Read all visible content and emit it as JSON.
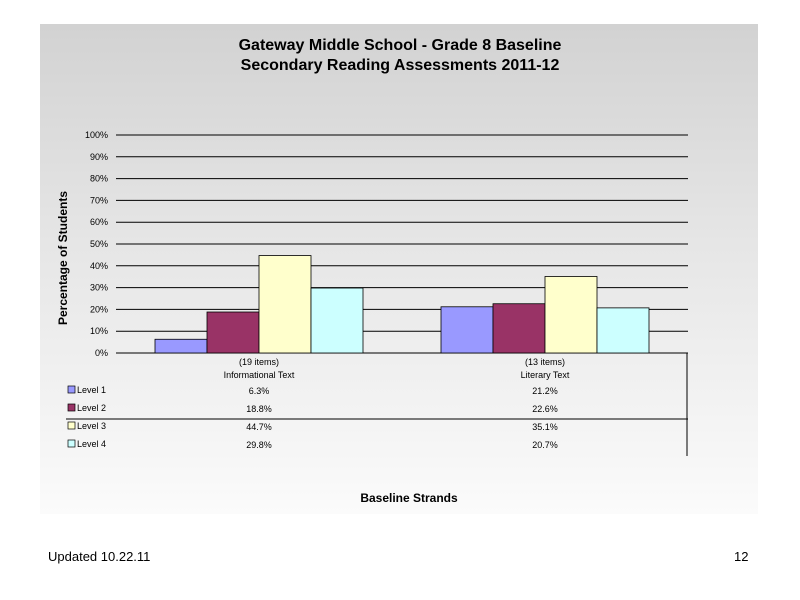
{
  "chart_data": {
    "type": "bar",
    "title_lines": [
      "Gateway Middle School - Grade 8 Baseline",
      "Secondary Reading Assessments 2011-12"
    ],
    "ylabel": "Percentage of Students",
    "xlabel": "Baseline Strands",
    "ylim": [
      0,
      100
    ],
    "y_ticks": [
      "0%",
      "10%",
      "20%",
      "30%",
      "40%",
      "50%",
      "60%",
      "70%",
      "80%",
      "90%",
      "100%"
    ],
    "categories": [
      {
        "line1": "(19 items)",
        "line2": "Informational Text"
      },
      {
        "line1": "(13 items)",
        "line2": "Literary Text"
      }
    ],
    "series": [
      {
        "name": "Level 1",
        "color": "#9999ff",
        "values": [
          6.3,
          21.2
        ],
        "labels": [
          "6.3%",
          "21.2%"
        ]
      },
      {
        "name": "Level 2",
        "color": "#993366",
        "values": [
          18.8,
          22.6
        ],
        "labels": [
          "18.8%",
          "22.6%"
        ]
      },
      {
        "name": "Level 3",
        "color": "#ffffcc",
        "values": [
          44.7,
          35.1
        ],
        "labels": [
          "44.7%",
          "35.1%"
        ]
      },
      {
        "name": "Level 4",
        "color": "#ccffff",
        "values": [
          29.8,
          20.7
        ],
        "labels": [
          "29.8%",
          "20.7%"
        ]
      }
    ],
    "grid": true,
    "legend": "data-table"
  },
  "footer": {
    "updated": "Updated  10.22.11",
    "page_number": "12"
  }
}
